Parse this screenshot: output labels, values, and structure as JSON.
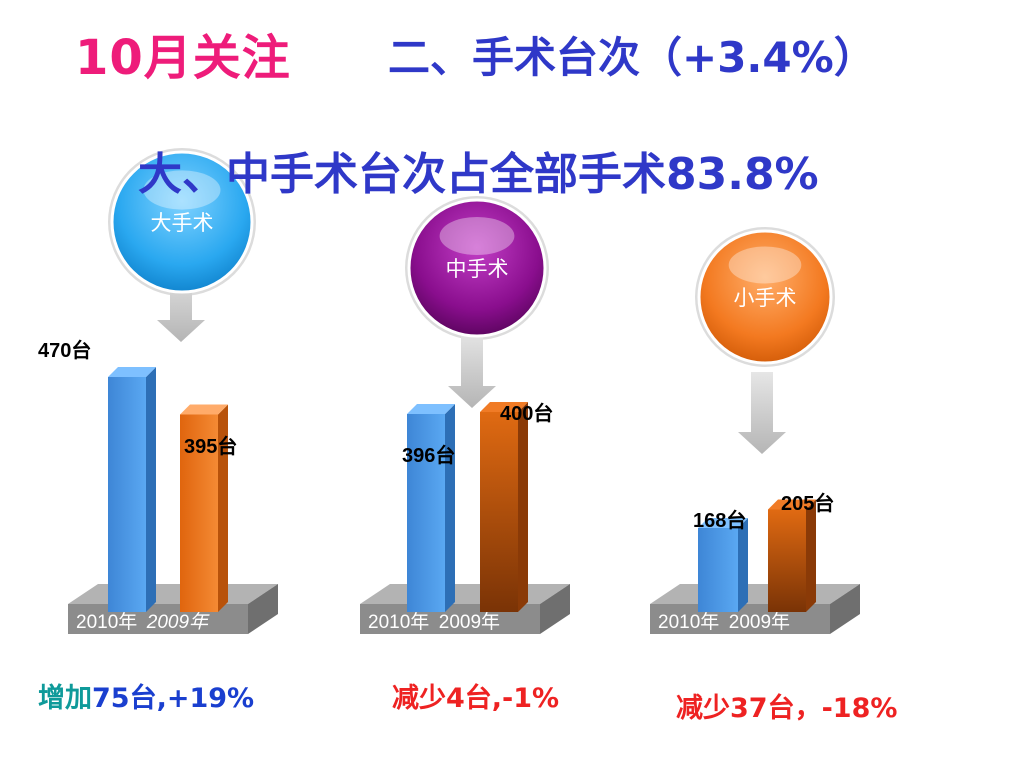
{
  "header": {
    "title": "10月关注",
    "section_prefix": "二、手术台次（",
    "section_pct": "+3.4%",
    "section_suffix": "）",
    "subtitle": "大、中手术台次占全部手术83.8%"
  },
  "colors": {
    "title": "#ee1c7a",
    "blue_text": "#2f38c8",
    "bar_2010": "#4c9be8",
    "bar_2009": "#f07820",
    "circle_big": "#2aa8f0",
    "circle_mid": "#8a0e8e",
    "circle_small": "#f37920",
    "base": "#9a9a9a"
  },
  "chart_data": [
    {
      "type": "bar",
      "title": "大手术",
      "categories": [
        "2010年",
        "2009年"
      ],
      "values": [
        470,
        395
      ],
      "value_labels": [
        "470台",
        "395台"
      ],
      "unit": "台",
      "summary": "增加75台,+19%"
    },
    {
      "type": "bar",
      "title": "中手术",
      "categories": [
        "2010年",
        "2009年"
      ],
      "values": [
        396,
        400
      ],
      "value_labels": [
        "396台",
        "400台"
      ],
      "unit": "台",
      "summary": "减少4台,-1%"
    },
    {
      "type": "bar",
      "title": "小手术",
      "categories": [
        "2010年",
        "2009年"
      ],
      "values": [
        168,
        205
      ],
      "value_labels": [
        "168台",
        "205台"
      ],
      "unit": "台",
      "summary": "减少37台，-18%"
    }
  ],
  "summaries": {
    "big_prefix": "增加",
    "big_rest": "75台,+19%",
    "mid": "减少4台,-1%",
    "small": "减少37台，-18%"
  }
}
